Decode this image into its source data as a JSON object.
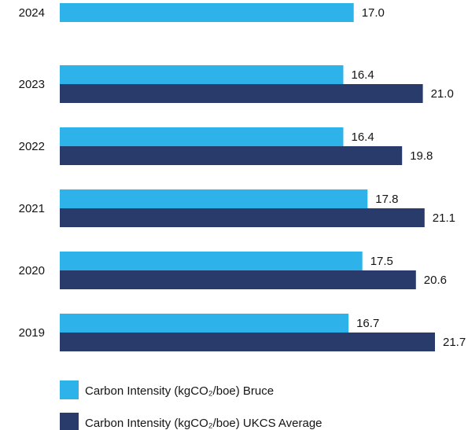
{
  "chart_data": {
    "type": "bar",
    "orientation": "horizontal",
    "categories": [
      "2024",
      "2023",
      "2022",
      "2021",
      "2020",
      "2019"
    ],
    "series": [
      {
        "name": "Carbon Intensity (kgCO₂/boe) Bruce",
        "color": "#2db3ea",
        "values": [
          17.0,
          16.4,
          16.4,
          17.8,
          17.5,
          16.7
        ],
        "labels": [
          "17.0",
          "16.4",
          "16.4",
          "17.8",
          "17.5",
          "16.7"
        ]
      },
      {
        "name": "Carbon Intensity (kgCO₂/boe) UKCS Average",
        "color": "#283b6b",
        "values": [
          null,
          21.0,
          19.8,
          21.1,
          20.6,
          21.7
        ],
        "labels": [
          null,
          "21.0",
          "19.8",
          "21.1",
          "20.6",
          "21.7"
        ]
      }
    ],
    "xlim": [
      0,
      22.2
    ],
    "grid": false,
    "legend_position": "bottom"
  }
}
